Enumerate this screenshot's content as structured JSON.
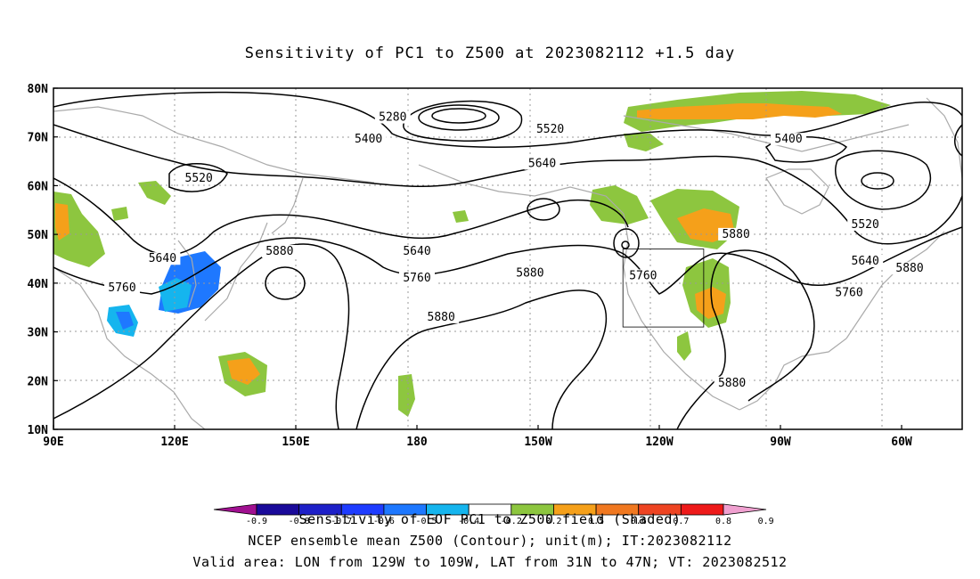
{
  "title": "Sensitivity of PC1 to Z500 at 2023082112 +1.5 day",
  "map": {
    "lat_labels": [
      "80N",
      "70N",
      "60N",
      "50N",
      "40N",
      "30N",
      "20N",
      "10N"
    ],
    "lon_labels": [
      "90E",
      "120E",
      "150E",
      "180",
      "150W",
      "120W",
      "90W",
      "60W"
    ],
    "contour_labels": [
      {
        "text": "5280",
        "lon": 174,
        "lat": 73.5
      },
      {
        "text": "5400",
        "lon": 168,
        "lat": 69
      },
      {
        "text": "5520",
        "lon": -147,
        "lat": 71
      },
      {
        "text": "5400",
        "lon": -88,
        "lat": 69
      },
      {
        "text": "5640",
        "lon": -149,
        "lat": 64
      },
      {
        "text": "5520",
        "lon": 126,
        "lat": 61
      },
      {
        "text": "5520",
        "lon": -69,
        "lat": 51.5
      },
      {
        "text": "5640",
        "lon": 117,
        "lat": 44.5
      },
      {
        "text": "5880",
        "lon": 146,
        "lat": 46
      },
      {
        "text": "5640",
        "lon": 180,
        "lat": 46
      },
      {
        "text": "5880",
        "lon": -101,
        "lat": 49.5
      },
      {
        "text": "5640",
        "lon": -69,
        "lat": 44
      },
      {
        "text": "5880",
        "lon": -58,
        "lat": 42.5
      },
      {
        "text": "5760",
        "lon": 107,
        "lat": 38.5
      },
      {
        "text": "5760",
        "lon": 180,
        "lat": 40.5
      },
      {
        "text": "5880",
        "lon": -152,
        "lat": 41.5
      },
      {
        "text": "5760",
        "lon": -124,
        "lat": 41
      },
      {
        "text": "5760",
        "lon": -73,
        "lat": 37.5
      },
      {
        "text": "5880",
        "lon": -174,
        "lat": 32.5
      },
      {
        "text": "5880",
        "lon": -102,
        "lat": 19
      }
    ],
    "valid_box": {
      "lon_from": -129,
      "lon_to": -109,
      "lat_from": 31,
      "lat_to": 47
    },
    "colors": {
      "negative_strong": "#1e3cff",
      "negative_light": "#15b5ee",
      "positive_green": "#8dc63f",
      "positive_orange": "#f5a01a",
      "positive_red": "#ee4422",
      "contour": "#000000",
      "coastline": "#aaaaaa",
      "grid": "#999999"
    }
  },
  "colorbar": {
    "levels": [
      "-0.9",
      "-0.8",
      "-0.7",
      "-0.6",
      "-0.5",
      "-0.4",
      "-0.2",
      "0.2",
      "0.5",
      "0.6",
      "0.7",
      "0.8",
      "0.9"
    ],
    "colors": [
      "#a01090",
      "#1a0a9a",
      "#1e20c8",
      "#1e3cff",
      "#1e78ff",
      "#15b5ee",
      "#ffffff",
      "#8dc63f",
      "#f5a01a",
      "#f07820",
      "#ee4422",
      "#ee1a1a",
      "#f0a0d0"
    ]
  },
  "caption": {
    "line1": "Sensitivity of EOF PC1 to Z500 field (Shaded)",
    "line2": "NCEP ensemble mean Z500 (Contour); unit(m); IT:2023082112",
    "line3": "Valid area: LON from 129W to 109W, LAT from 31N to 47N; VT: 2023082512"
  }
}
